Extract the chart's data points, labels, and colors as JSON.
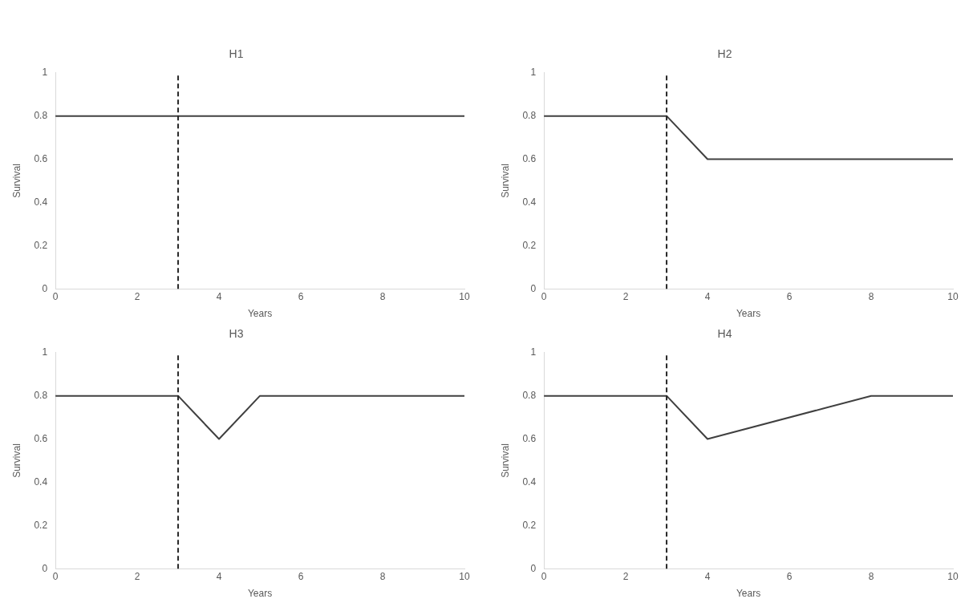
{
  "chart_data": [
    {
      "type": "line",
      "title": "H1",
      "xlabel": "Years",
      "ylabel": "Survival",
      "x": [
        0,
        3,
        10
      ],
      "series": [
        {
          "color": "#404040",
          "values": [
            0.8,
            0.8,
            0.8
          ]
        }
      ],
      "xlim": [
        0,
        10
      ],
      "ylim": [
        0,
        1
      ],
      "xticks": [
        0,
        2,
        4,
        6,
        8,
        10
      ],
      "yticks": [
        0,
        0.2,
        0.4,
        0.6,
        0.8,
        1
      ],
      "grid": false,
      "legend": false,
      "marker": "none",
      "line_style": "solid",
      "ref_lines": [
        {
          "axis": "x",
          "value": 3,
          "color": "#262626",
          "line_style": "dashed"
        }
      ]
    },
    {
      "type": "line",
      "title": "H2",
      "xlabel": "Years",
      "ylabel": "Survival",
      "x": [
        0,
        3,
        4,
        10
      ],
      "series": [
        {
          "color": "#404040",
          "values": [
            0.8,
            0.8,
            0.6,
            0.6
          ]
        }
      ],
      "xlim": [
        0,
        10
      ],
      "ylim": [
        0,
        1
      ],
      "xticks": [
        0,
        2,
        4,
        6,
        8,
        10
      ],
      "yticks": [
        0,
        0.2,
        0.4,
        0.6,
        0.8,
        1
      ],
      "grid": false,
      "legend": false,
      "marker": "none",
      "line_style": "solid",
      "ref_lines": [
        {
          "axis": "x",
          "value": 3,
          "color": "#262626",
          "line_style": "dashed"
        }
      ]
    },
    {
      "type": "line",
      "title": "H3",
      "xlabel": "Years",
      "ylabel": "Survival",
      "x": [
        0,
        3,
        4,
        5,
        10
      ],
      "series": [
        {
          "color": "#404040",
          "values": [
            0.8,
            0.8,
            0.6,
            0.8,
            0.8
          ]
        }
      ],
      "xlim": [
        0,
        10
      ],
      "ylim": [
        0,
        1
      ],
      "xticks": [
        0,
        2,
        4,
        6,
        8,
        10
      ],
      "yticks": [
        0,
        0.2,
        0.4,
        0.6,
        0.8,
        1
      ],
      "grid": false,
      "legend": false,
      "marker": "none",
      "line_style": "solid",
      "ref_lines": [
        {
          "axis": "x",
          "value": 3,
          "color": "#262626",
          "line_style": "dashed"
        }
      ]
    },
    {
      "type": "line",
      "title": "H4",
      "xlabel": "Years",
      "ylabel": "Survival",
      "x": [
        0,
        3,
        4,
        8,
        10
      ],
      "series": [
        {
          "color": "#404040",
          "values": [
            0.8,
            0.8,
            0.6,
            0.8,
            0.8
          ]
        }
      ],
      "xlim": [
        0,
        10
      ],
      "ylim": [
        0,
        1
      ],
      "xticks": [
        0,
        2,
        4,
        6,
        8,
        10
      ],
      "yticks": [
        0,
        0.2,
        0.4,
        0.6,
        0.8,
        1
      ],
      "grid": false,
      "legend": false,
      "marker": "none",
      "line_style": "solid",
      "ref_lines": [
        {
          "axis": "x",
          "value": 3,
          "color": "#262626",
          "line_style": "dashed"
        }
      ]
    }
  ]
}
